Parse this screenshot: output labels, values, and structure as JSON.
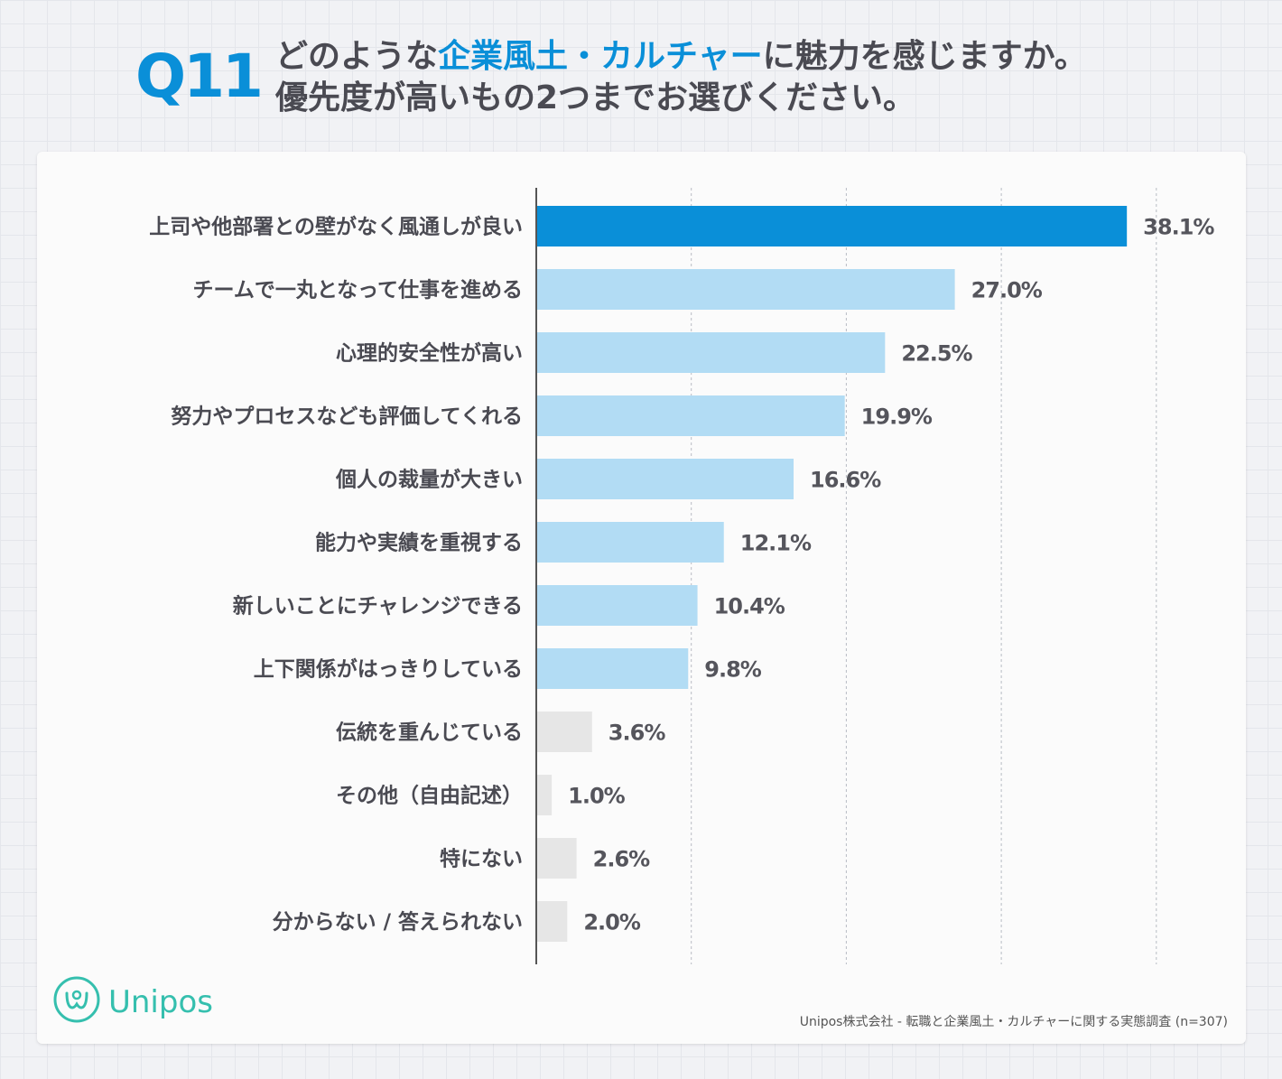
{
  "header": {
    "question_number": "Q11",
    "title_line1_prefix": "どのような",
    "title_line1_highlight": "企業風土・カルチャー",
    "title_line1_suffix": "に魅力を感じますか。",
    "title_line2": "優先度が高いもの2つまでお選びください。"
  },
  "chart_data": {
    "type": "bar",
    "orientation": "horizontal",
    "title": "どのような企業風土・カルチャーに魅力を感じますか。優先度が高いもの2つまでお選びください。",
    "xlim": [
      0,
      40
    ],
    "grid": true,
    "categories": [
      "上司や他部署との壁がなく風通しが良い",
      "チームで一丸となって仕事を進める",
      "心理的安全性が高い",
      "努力やプロセスなども評価してくれる",
      "個人の裁量が大きい",
      "能力や実績を重視する",
      "新しいことにチャレンジできる",
      "上下関係がはっきりしている",
      "伝統を重んじている",
      "その他（自由記述）",
      "特にない",
      "分からない / 答えられない"
    ],
    "values": [
      38.1,
      27.0,
      22.5,
      19.9,
      16.6,
      12.1,
      10.4,
      9.8,
      3.6,
      1.0,
      2.6,
      2.0
    ],
    "value_labels": [
      "38.1%",
      "27.0%",
      "22.5%",
      "19.9%",
      "16.6%",
      "12.1%",
      "10.4%",
      "9.8%",
      "3.6%",
      "1.0%",
      "2.6%",
      "2.0%"
    ],
    "bar_colors": [
      "#0a8fd8",
      "#b2dcf4",
      "#b2dcf4",
      "#b2dcf4",
      "#b2dcf4",
      "#b2dcf4",
      "#b2dcf4",
      "#b2dcf4",
      "#e6e6e6",
      "#e6e6e6",
      "#e6e6e6",
      "#e6e6e6"
    ]
  },
  "brand": {
    "name": "Unipos",
    "color": "#35bfae"
  },
  "footer": {
    "source": "Unipos株式会社 - 転職と企業風土・カルチャーに関する実態調査 (n=307)"
  }
}
